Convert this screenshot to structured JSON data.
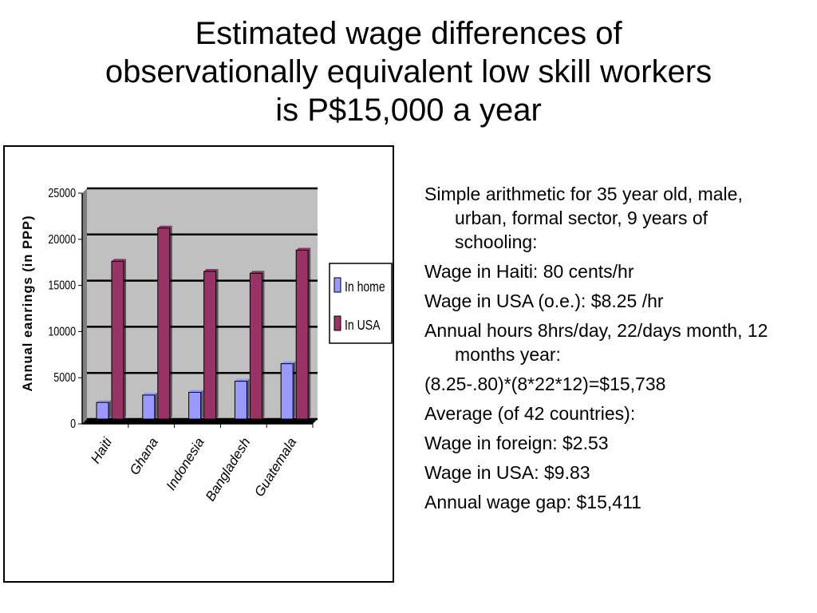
{
  "title_lines": [
    "Estimated wage differences of",
    "observationally equivalent low skill workers",
    "is P$15,000 a year"
  ],
  "notes": [
    "Simple arithmetic for 35 year old, male, urban, formal sector, 9 years of schooling:",
    "Wage in Haiti: 80 cents/hr",
    "Wage in USA (o.e.):  $8.25 /hr",
    "Annual hours 8hrs/day, 22/days month, 12 months year:",
    "(8.25-.80)*(8*22*12)=$15,738",
    "Average (of 42 countries):",
    "Wage in foreign: $2.53",
    "Wage in USA: $9.83",
    "Annual wage gap:  $15,411"
  ],
  "chart_data": {
    "type": "bar",
    "title": "",
    "xlabel": "",
    "ylabel": "Annual eanrings (in PPP)",
    "ylim": [
      0,
      25000
    ],
    "yticks": [
      0,
      5000,
      10000,
      15000,
      20000,
      25000
    ],
    "categories": [
      "Haiti",
      "Ghana",
      "Indonesia",
      "Bangladesh",
      "Guatemala"
    ],
    "series": [
      {
        "name": "In home",
        "color": "#9999ff",
        "values": [
          1800,
          2600,
          2900,
          4100,
          6000
        ]
      },
      {
        "name": "In USA",
        "color": "#993366",
        "values": [
          17100,
          20700,
          16000,
          15800,
          18300
        ]
      }
    ],
    "plot_background": "#c0c0c0",
    "grid": true,
    "legend_position": "right"
  }
}
